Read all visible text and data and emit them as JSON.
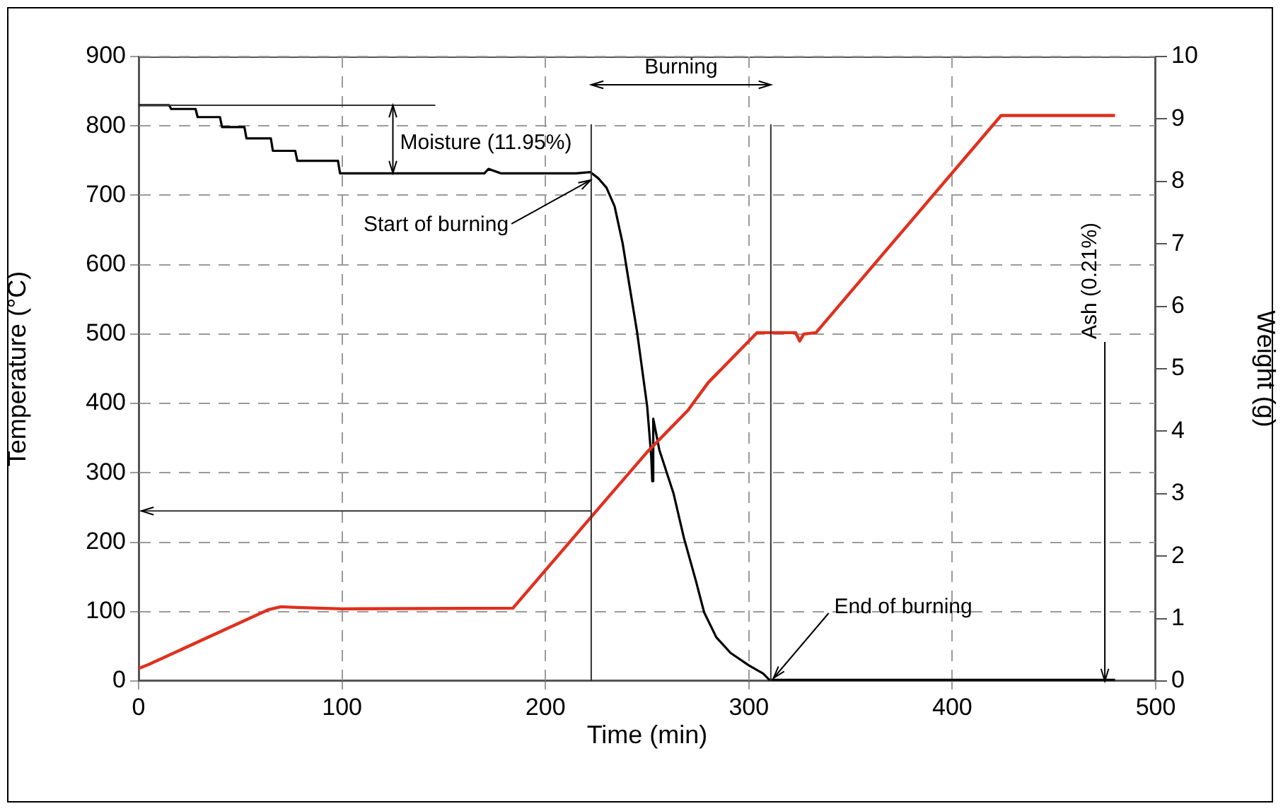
{
  "chart_data": {
    "type": "line",
    "xlabel": "Time (min)",
    "ylabel": "Temperature (°C)",
    "y2label": "Weight (g)",
    "xlim": [
      0,
      500
    ],
    "xticks": [
      0,
      100,
      200,
      300,
      400,
      500
    ],
    "ylim": [
      0,
      900
    ],
    "yticks": [
      0,
      100,
      200,
      300,
      400,
      500,
      600,
      700,
      800,
      900
    ],
    "y2lim": [
      0,
      10
    ],
    "y2ticks": [
      0,
      1,
      2,
      3,
      4,
      5,
      6,
      7,
      8,
      9,
      10
    ],
    "grid": true,
    "legend": false,
    "marker": "none",
    "series": [
      {
        "color": "#e0301e",
        "x": [
          0,
          5,
          64,
          70,
          78,
          100,
          184,
          225,
          250,
          270,
          280,
          304,
          323,
          325,
          327,
          333,
          424,
          480
        ],
        "values": [
          18,
          24,
          103,
          107,
          106,
          104,
          105,
          245,
          330,
          390,
          430,
          502,
          502,
          490,
          500,
          502,
          815,
          815
        ]
      },
      {
        "color": "#000000",
        "axis": "y2",
        "x": [
          0,
          15,
          16,
          28,
          29,
          40,
          41,
          52,
          53,
          65,
          66,
          77,
          78,
          98,
          99,
          170,
          172,
          178,
          215,
          222,
          226,
          230,
          234,
          238,
          241,
          245,
          250,
          252,
          252.5,
          253,
          256,
          263,
          268,
          274,
          278,
          284,
          291,
          300,
          307,
          310,
          480
        ],
        "values": [
          9.22,
          9.22,
          9.16,
          9.16,
          9.03,
          9.03,
          8.87,
          8.87,
          8.69,
          8.69,
          8.49,
          8.49,
          8.33,
          8.33,
          8.13,
          8.13,
          8.2,
          8.13,
          8.13,
          8.15,
          8.05,
          7.9,
          7.6,
          7.0,
          6.39,
          5.6,
          4.4,
          3.6,
          3.2,
          4.2,
          3.7,
          3.0,
          2.3,
          1.6,
          1.1,
          0.7,
          0.45,
          0.25,
          0.12,
          0.02,
          0.02
        ]
      }
    ],
    "ref_lines": [
      {
        "axis": "x",
        "value": 222.5
      },
      {
        "axis": "x",
        "value": 310.8
      },
      {
        "axis": "y",
        "value": 245
      },
      {
        "axis": "y2",
        "value": 9.22
      }
    ],
    "annotations": [
      {
        "text": "Moisture (11.95%)",
        "x": 125,
        "y": 732
      },
      "Burning",
      {
        "text": "Start of burning",
        "x": 225,
        "y": 730
      },
      {
        "text": "End of burning",
        "x": 310,
        "y": 0
      },
      {
        "text": "Ash (0.21%)",
        "x": 475,
        "y": 0
      }
    ]
  }
}
